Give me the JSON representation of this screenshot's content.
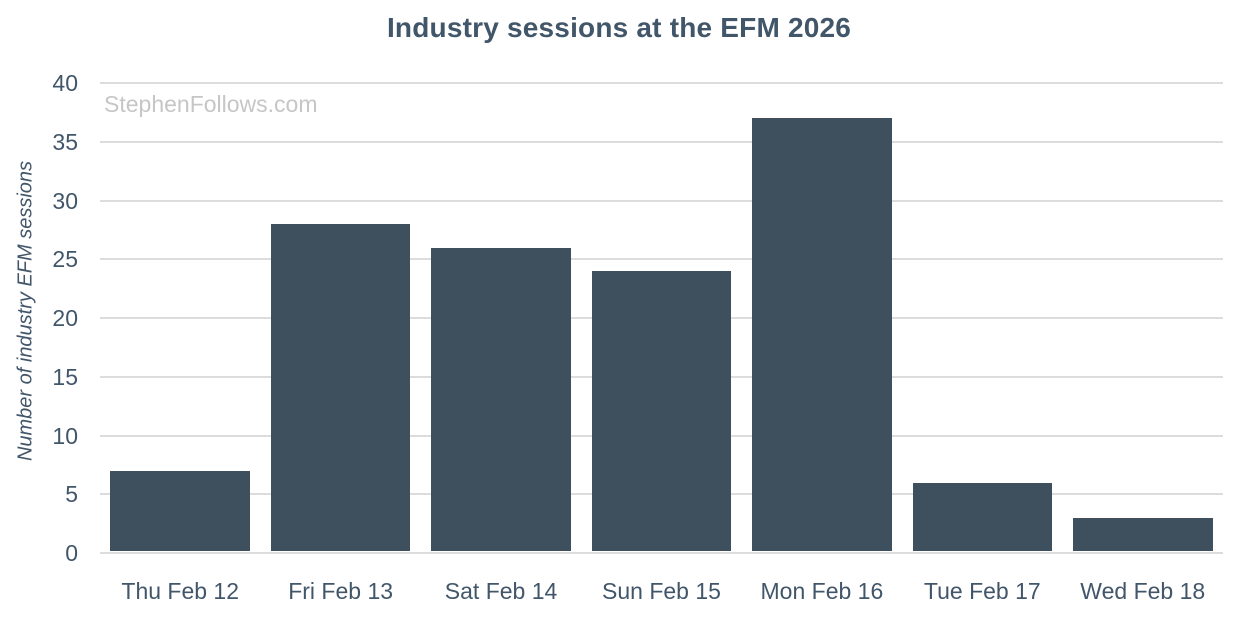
{
  "watermark": "StephenFollows.com",
  "colors": {
    "bar": "#3e4f5e",
    "text": "#42566a",
    "grid": "#dcdcdc",
    "watermark": "#c6c6c6",
    "background": "#ffffff"
  },
  "chart_data": {
    "type": "bar",
    "title": "Industry sessions at the EFM 2026",
    "categories": [
      "Thu Feb 12",
      "Fri Feb 13",
      "Sat Feb 14",
      "Sun Feb 15",
      "Mon Feb 16",
      "Tue Feb 17",
      "Wed Feb 18"
    ],
    "values": [
      7,
      28,
      26,
      24,
      37,
      6,
      3
    ],
    "xlabel": "",
    "ylabel": "Number of industry EFM sessions",
    "ylim": [
      0,
      40
    ],
    "yticks": [
      0,
      5,
      10,
      15,
      20,
      25,
      30,
      35,
      40
    ],
    "grid": true,
    "legend": false,
    "annotations": [
      "StephenFollows.com"
    ]
  }
}
